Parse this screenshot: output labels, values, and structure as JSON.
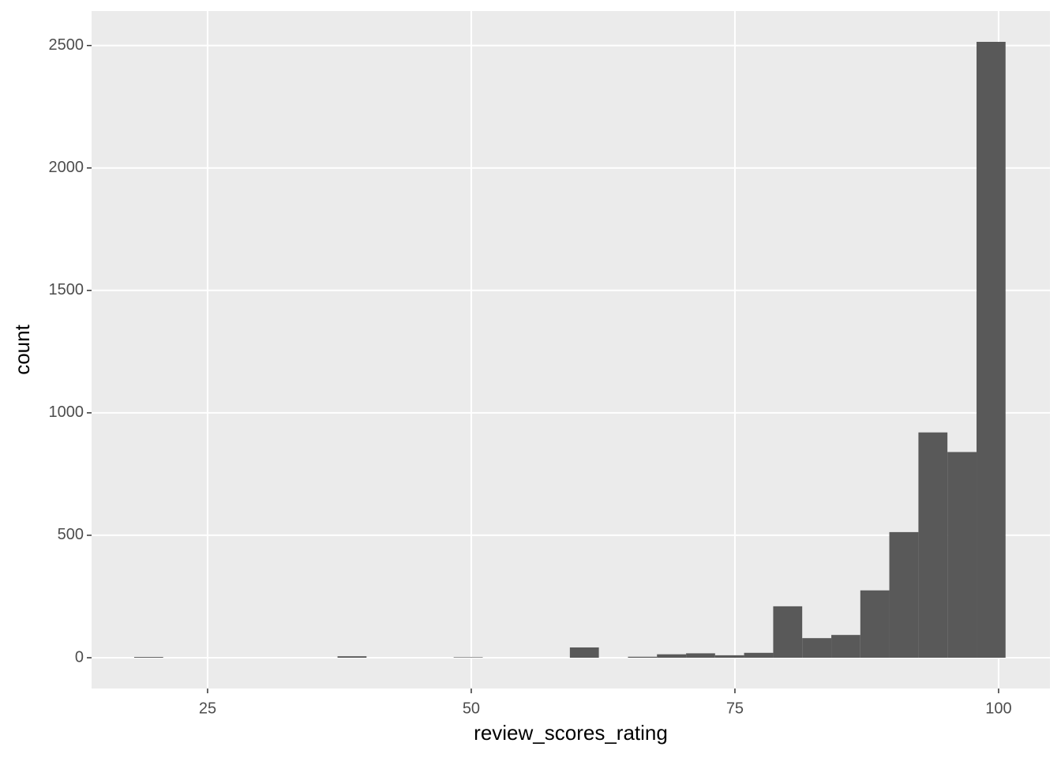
{
  "chart_data": {
    "type": "histogram",
    "x_label": "review_scores_rating",
    "y_label": "count",
    "bins": [
      18.04,
      20.79,
      23.55,
      26.3,
      29.06,
      31.81,
      34.56,
      37.32,
      40.07,
      42.83,
      45.58,
      48.33,
      51.09,
      53.84,
      56.6,
      59.35,
      62.1,
      64.86,
      67.61,
      70.37,
      73.12,
      75.87,
      78.63,
      81.38,
      84.14,
      86.89,
      89.64,
      92.4,
      95.15,
      97.91,
      100.66
    ],
    "values": [
      3,
      0,
      0,
      0,
      0,
      0,
      0,
      6,
      0,
      0,
      0,
      2,
      0,
      0,
      0,
      42,
      0,
      4,
      14,
      18,
      10,
      20,
      210,
      80,
      93,
      275,
      513,
      920,
      840,
      2515
    ],
    "color": "#595959",
    "xlim": [
      14.0,
      104.87
    ],
    "xticks": [
      25,
      50,
      75,
      100
    ],
    "ylim": [
      -125.75,
      2640.75
    ],
    "yticks": [
      0,
      500,
      1000,
      1500,
      2000,
      2500
    ],
    "grid": true
  }
}
